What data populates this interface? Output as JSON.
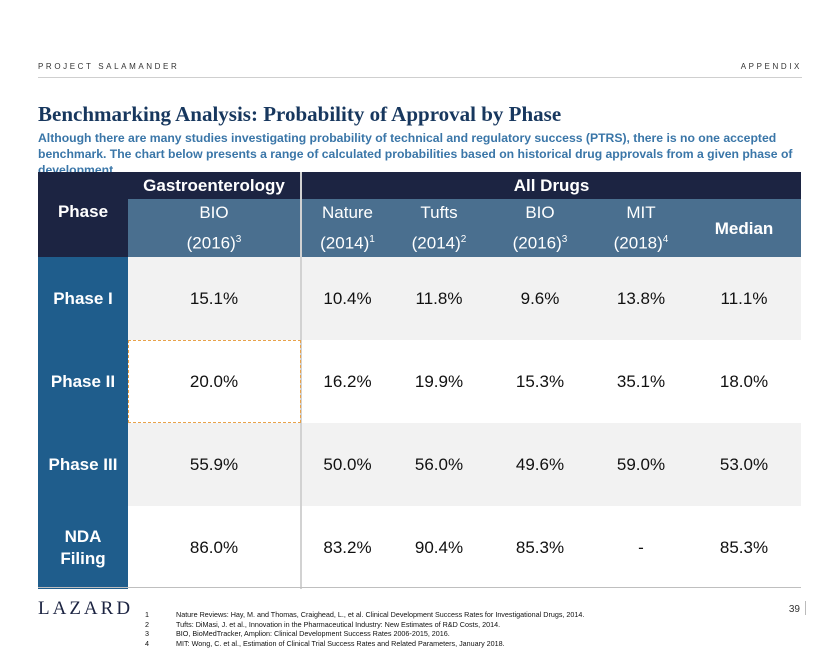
{
  "header": {
    "project": "PROJECT SALAMANDER",
    "section": "APPENDIX"
  },
  "title": "Benchmarking Analysis: Probability of Approval by Phase",
  "subtitle": "Although there are many studies investigating probability of technical and regulatory success (PTRS), there is no one accepted benchmark. The chart below presents a range of calculated probabilities based on historical drug approvals from a given phase of development",
  "table": {
    "phase_label": "Phase",
    "groups": [
      "Gastroenterology",
      "All Drugs"
    ],
    "sources": [
      {
        "name": "BIO",
        "year": "(2016)",
        "note": "3"
      },
      {
        "name": "Nature",
        "year": "(2014)",
        "note": "1"
      },
      {
        "name": "Tufts",
        "year": "(2014)",
        "note": "2"
      },
      {
        "name": "BIO",
        "year": "(2016)",
        "note": "3"
      },
      {
        "name": "MIT",
        "year": "(2018)",
        "note": "4"
      }
    ],
    "median_label": "Median",
    "rows": [
      {
        "phase": "Phase I",
        "values": [
          "15.1%",
          "10.4%",
          "11.8%",
          "9.6%",
          "13.8%",
          "11.1%"
        ]
      },
      {
        "phase": "Phase II",
        "values": [
          "20.0%",
          "16.2%",
          "19.9%",
          "15.3%",
          "35.1%",
          "18.0%"
        ]
      },
      {
        "phase": "Phase III",
        "values": [
          "55.9%",
          "50.0%",
          "56.0%",
          "49.6%",
          "59.0%",
          "53.0%"
        ]
      },
      {
        "phase_line1": "NDA",
        "phase_line2": "Filing",
        "values": [
          "86.0%",
          "83.2%",
          "90.4%",
          "85.3%",
          "-",
          "85.3%"
        ]
      }
    ]
  },
  "footer": {
    "logo": "LAZARD",
    "page": "39",
    "footnotes": [
      {
        "num": "1",
        "text": "Nature Reviews: Hay, M. and Thomas, Craighead, L., et al. Clinical Development Success Rates for Investigational Drugs, 2014."
      },
      {
        "num": "2",
        "text": "Tufts: DiMasi, J. et al., Innovation in the Pharmaceutical Industry: New Estimates of R&D Costs, 2014."
      },
      {
        "num": "3",
        "text": "BIO, BioMedTracker, Amplion: Clinical Development Success Rates 2006-2015, 2016."
      },
      {
        "num": "4",
        "text": "MIT: Wong, C. et al., Estimation of Clinical Trial Success Rates and Related Parameters, January 2018."
      }
    ]
  },
  "colors": {
    "navy": "#1c2442",
    "header_blue": "#4a6f8f",
    "phase_blue": "#1f5d8c",
    "title_blue": "#17375e",
    "subtitle_blue": "#3a76a8",
    "highlight": "#e8a24a"
  }
}
